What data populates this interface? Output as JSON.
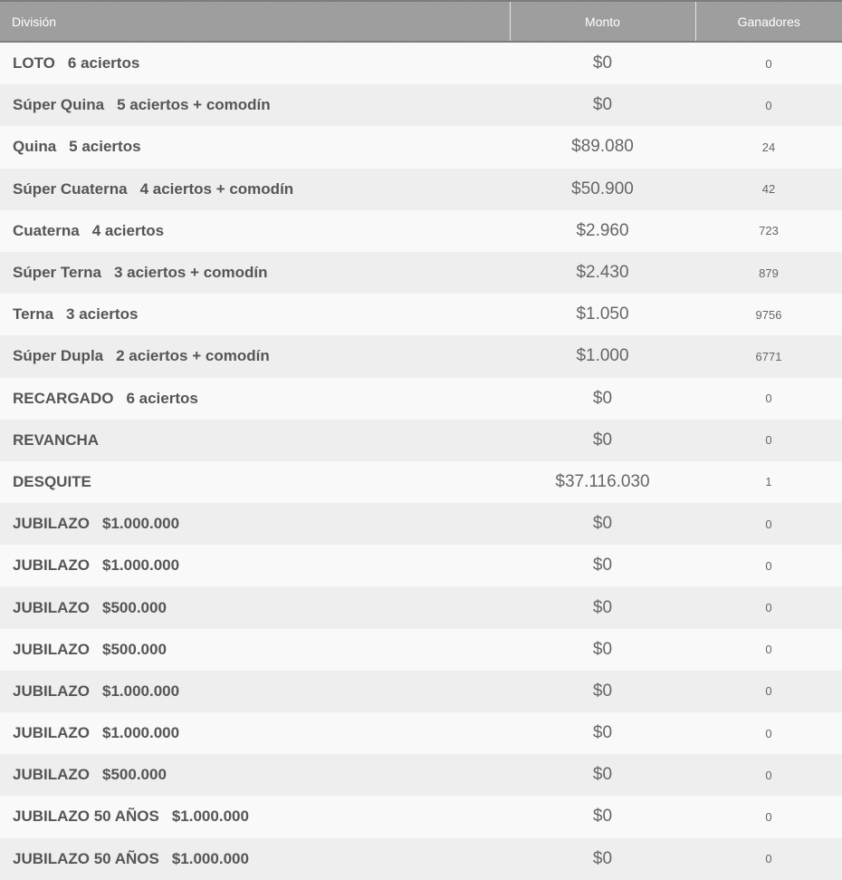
{
  "table": {
    "headers": {
      "division": "División",
      "monto": "Monto",
      "ganadores": "Ganadores"
    },
    "rows": [
      {
        "name": "LOTO",
        "detail": "6 aciertos",
        "monto": "$0",
        "ganadores": "0"
      },
      {
        "name": "Súper Quina",
        "detail": "5 aciertos + comodín",
        "monto": "$0",
        "ganadores": "0"
      },
      {
        "name": "Quina",
        "detail": "5 aciertos",
        "monto": "$89.080",
        "ganadores": "24"
      },
      {
        "name": "Súper Cuaterna",
        "detail": "4 aciertos + comodín",
        "monto": "$50.900",
        "ganadores": "42"
      },
      {
        "name": "Cuaterna",
        "detail": "4 aciertos",
        "monto": "$2.960",
        "ganadores": "723"
      },
      {
        "name": "Súper Terna",
        "detail": "3 aciertos + comodín",
        "monto": "$2.430",
        "ganadores": "879"
      },
      {
        "name": "Terna",
        "detail": "3 aciertos",
        "monto": "$1.050",
        "ganadores": "9756"
      },
      {
        "name": "Súper Dupla",
        "detail": "2 aciertos + comodín",
        "monto": "$1.000",
        "ganadores": "6771"
      },
      {
        "name": "RECARGADO",
        "detail": "6 aciertos",
        "monto": "$0",
        "ganadores": "0"
      },
      {
        "name": "REVANCHA",
        "detail": "",
        "monto": "$0",
        "ganadores": "0"
      },
      {
        "name": "DESQUITE",
        "detail": "",
        "monto": "$37.116.030",
        "ganadores": "1"
      },
      {
        "name": "JUBILAZO",
        "detail": "$1.000.000",
        "monto": "$0",
        "ganadores": "0"
      },
      {
        "name": "JUBILAZO",
        "detail": "$1.000.000",
        "monto": "$0",
        "ganadores": "0"
      },
      {
        "name": "JUBILAZO",
        "detail": "$500.000",
        "monto": "$0",
        "ganadores": "0"
      },
      {
        "name": "JUBILAZO",
        "detail": "$500.000",
        "monto": "$0",
        "ganadores": "0"
      },
      {
        "name": "JUBILAZO",
        "detail": "$1.000.000",
        "monto": "$0",
        "ganadores": "0"
      },
      {
        "name": "JUBILAZO",
        "detail": "$1.000.000",
        "monto": "$0",
        "ganadores": "0"
      },
      {
        "name": "JUBILAZO",
        "detail": "$500.000",
        "monto": "$0",
        "ganadores": "0"
      },
      {
        "name": "JUBILAZO 50 AÑOS",
        "detail": "$1.000.000",
        "monto": "$0",
        "ganadores": "0"
      },
      {
        "name": "JUBILAZO 50 AÑOS",
        "detail": "$1.000.000",
        "monto": "$0",
        "ganadores": "0"
      }
    ]
  }
}
